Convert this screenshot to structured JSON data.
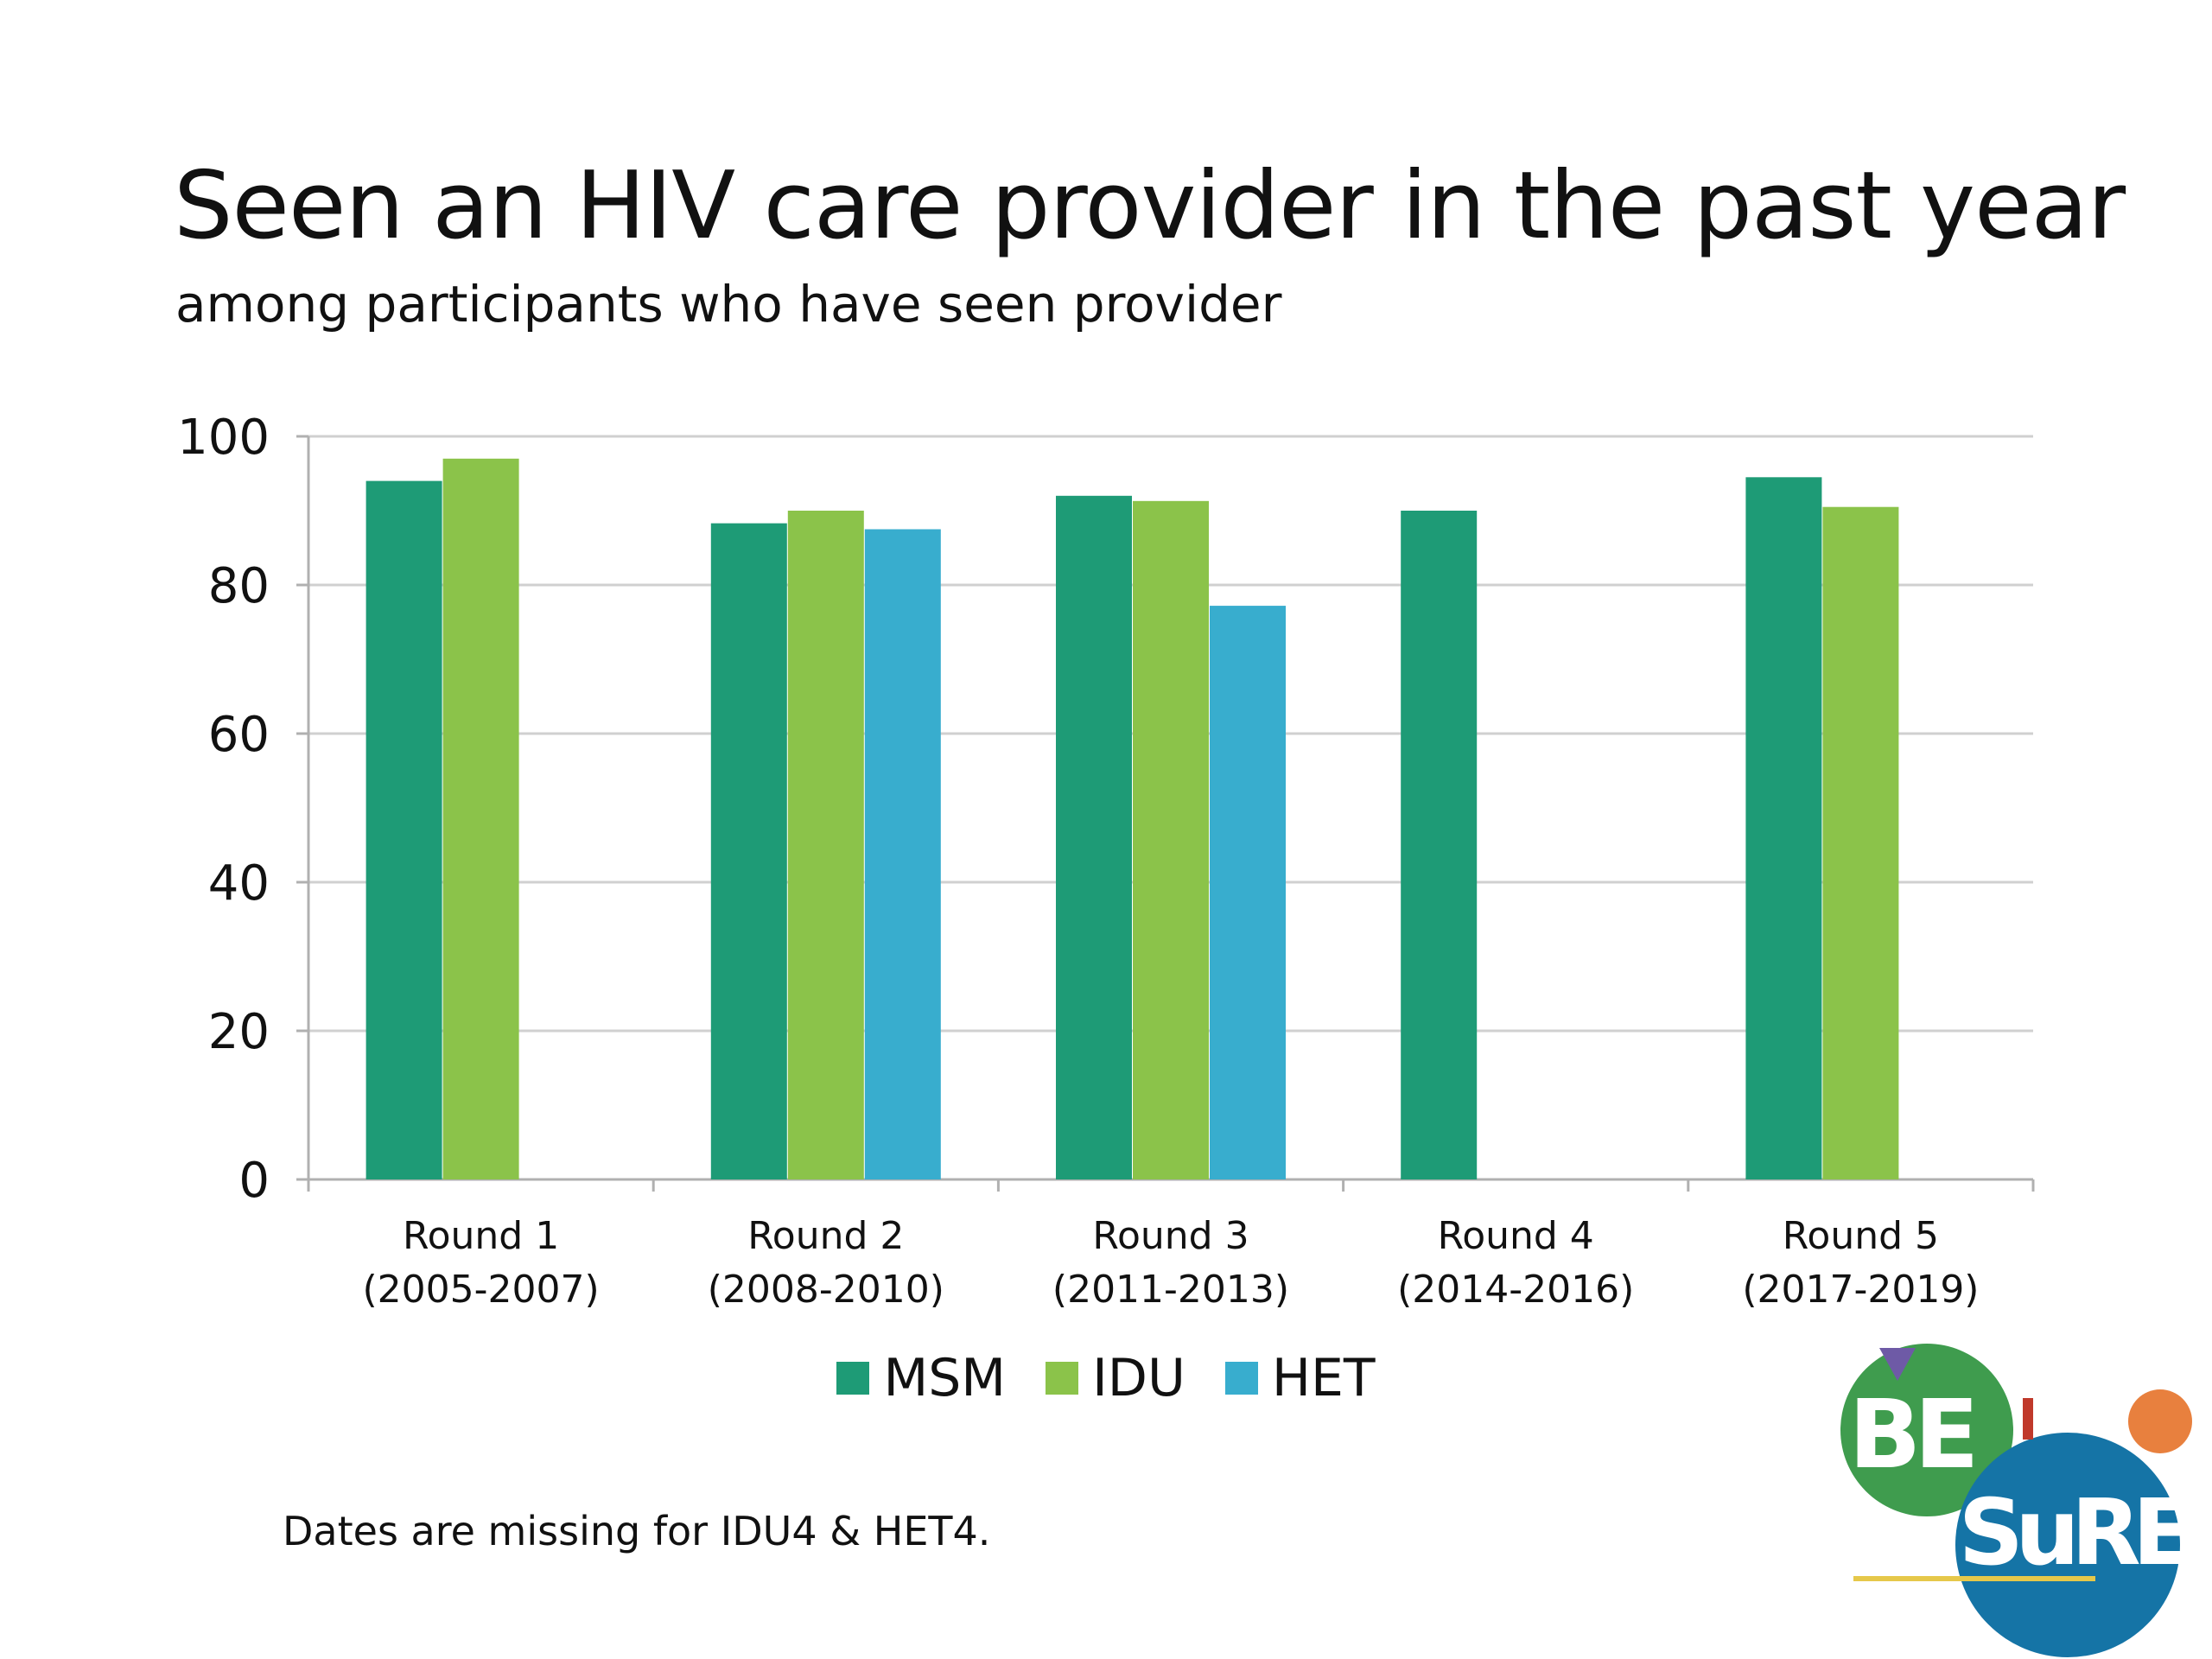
{
  "slide": {
    "title": "Seen an HIV care provider in the past year",
    "subtitle": "among participants who have seen provider",
    "footnote": "Dates are missing for IDU4 & HET4."
  },
  "chart_data": {
    "type": "bar",
    "title": "Seen an HIV care provider in the past year",
    "subtitle": "among participants who have seen provider",
    "xlabel": "",
    "ylabel": "",
    "ylim": [
      0,
      100
    ],
    "yticks": [
      "0",
      "20",
      "40",
      "60",
      "80",
      "100"
    ],
    "grid": true,
    "legend_position": "bottom",
    "categories": [
      [
        "Round 1",
        "(2005-2007)"
      ],
      [
        "Round 2",
        "(2008-2010)"
      ],
      [
        "Round 3",
        "(2011-2013)"
      ],
      [
        "Round 4",
        "(2014-2016)"
      ],
      [
        "Round 5",
        "(2017-2019)"
      ]
    ],
    "series": [
      {
        "name": "MSM",
        "color": "#1e9b76",
        "values": [
          94,
          88.3,
          92,
          90,
          94.5
        ]
      },
      {
        "name": "IDU",
        "color": "#8bc34a",
        "values": [
          97,
          90,
          91.3,
          null,
          90.5
        ]
      },
      {
        "name": "HET",
        "color": "#38adce",
        "values": [
          null,
          87.5,
          77.2,
          null,
          null
        ]
      }
    ]
  },
  "logo": {
    "text_top": "BE",
    "text_bottom": "SuRE",
    "colors": {
      "green": "#3f9c4e",
      "blue": "#1574a6",
      "orange": "#e8803e",
      "purple": "#6e5aa6",
      "line": "#e6c84a"
    }
  }
}
